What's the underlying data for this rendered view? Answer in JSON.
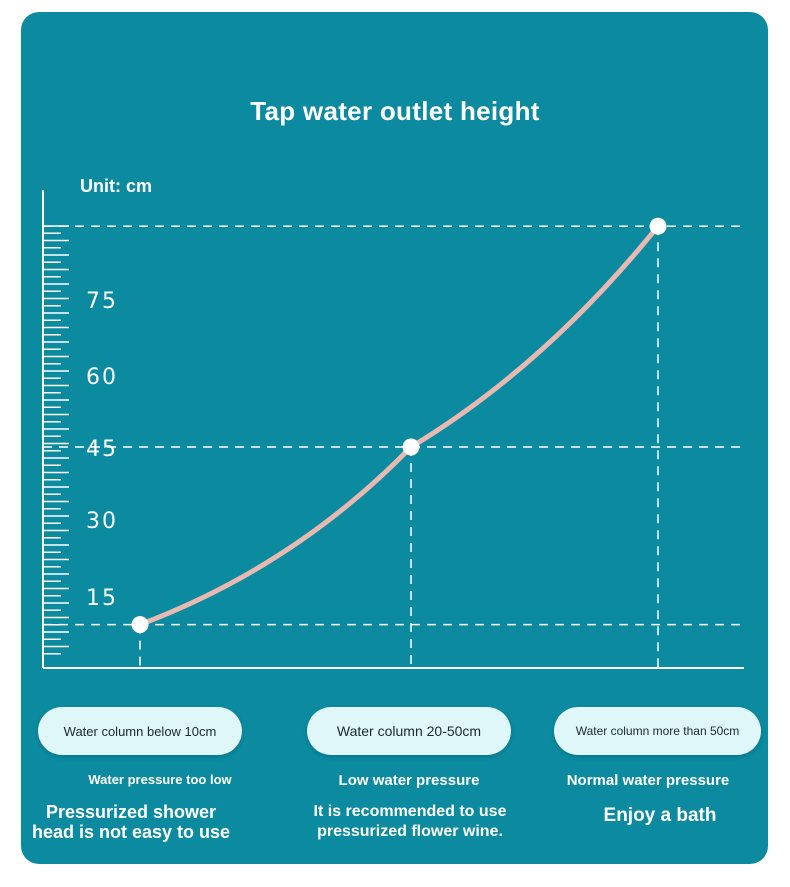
{
  "header": {
    "title": "Tap water outlet height",
    "unit_label": "Unit: cm"
  },
  "chart_data": {
    "type": "line",
    "title": "Tap water outlet height",
    "ylabel": "Unit: cm",
    "xlabel": "",
    "y_ticks": [
      "15",
      "30",
      "45",
      "60",
      "75"
    ],
    "ylim": [
      0,
      100
    ],
    "categories": [
      "Water column below 10cm",
      "Water column 20-50cm",
      "Water column more than 50cm"
    ],
    "series": [
      {
        "values": [
          8,
          45,
          91
        ]
      }
    ],
    "grid": "dashed guide lines at each point",
    "color": "#e8b9b0"
  },
  "columns": [
    {
      "label": "Water column below 10cm",
      "status": "Water pressure too low",
      "advice_line1": "Pressurized shower",
      "advice_line2": "head is not easy to use"
    },
    {
      "label": "Water column 20-50cm",
      "status": "Low water pressure",
      "advice_line1": "It is recommended to use",
      "advice_line2": "pressurized flower wine."
    },
    {
      "label": "Water column more than 50cm",
      "status": "Normal water pressure",
      "advice_line1": "Enjoy a bath",
      "advice_line2": ""
    }
  ],
  "colors": {
    "background": "#0b8aa0",
    "curve": "#e8b9b0",
    "pill": "#dff7f9",
    "text": "#ffffff"
  }
}
